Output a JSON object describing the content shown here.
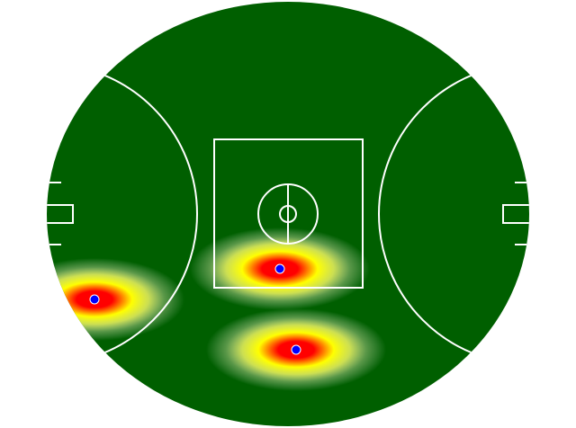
{
  "chart_data": {
    "type": "scatter",
    "x": [
      -215,
      -9,
      9
    ],
    "y": [
      -95,
      -61,
      -151
    ],
    "color": "#0000ff",
    "xlim": [
      -268,
      268
    ],
    "ylim": [
      -236,
      236
    ]
  }
}
